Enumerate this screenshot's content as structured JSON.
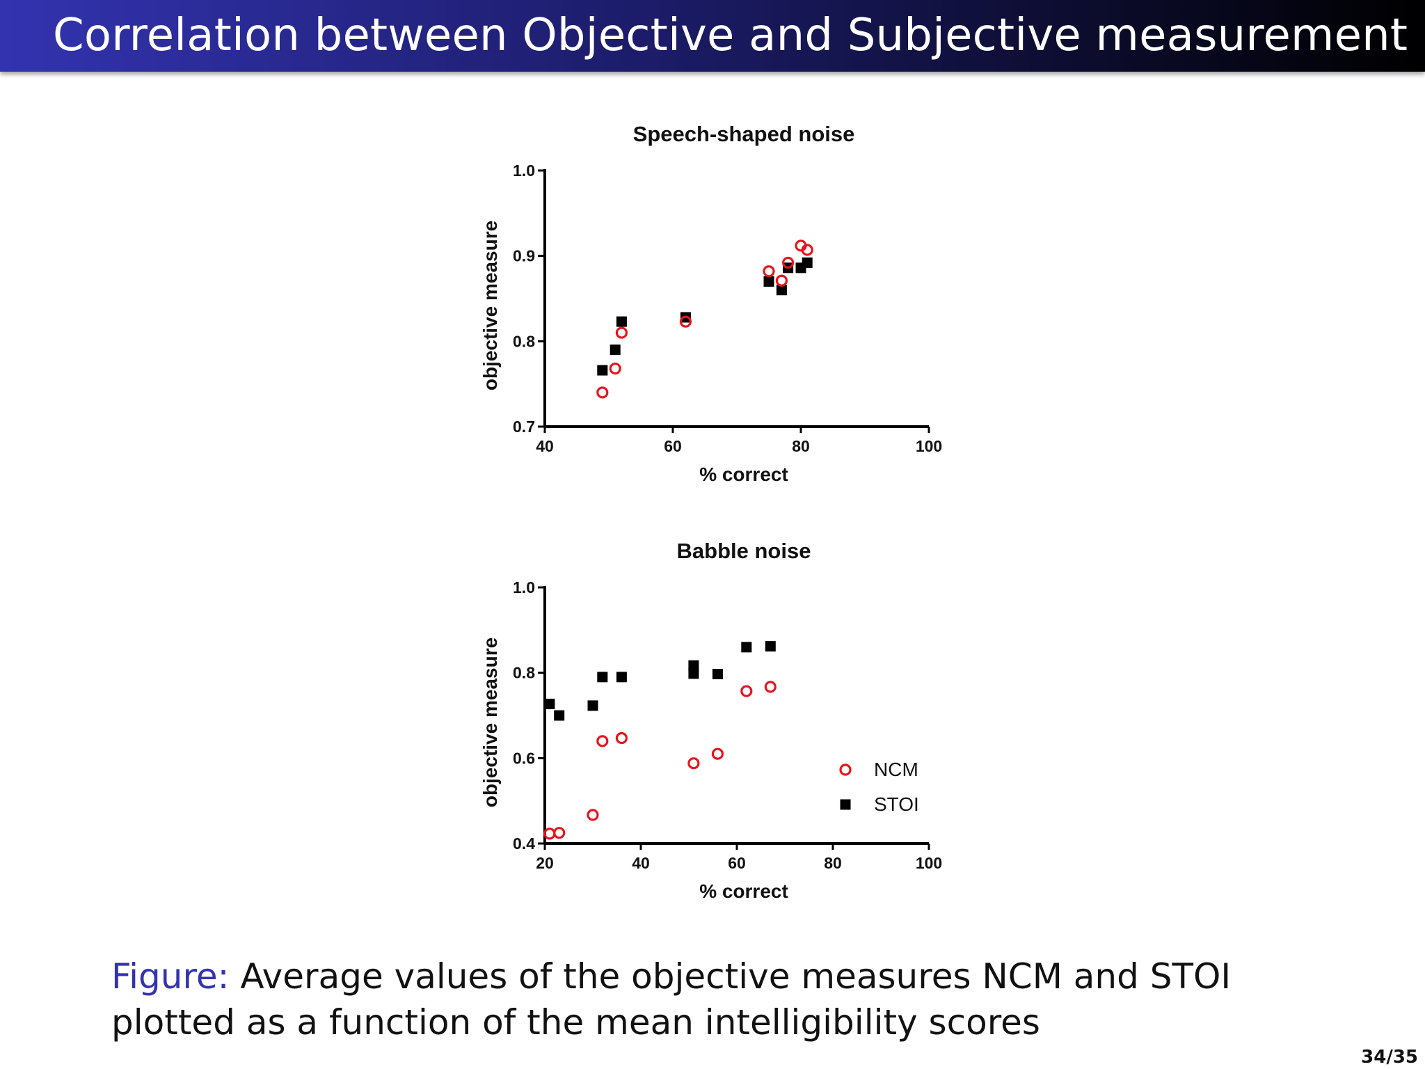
{
  "slide": {
    "title": "Correlation between Objective and Subjective measurement",
    "caption_label": "Figure:",
    "caption_text": " Average values of the objective measures NCM and STOI plotted as a function of the mean intelligibility scores",
    "page": "34/35"
  },
  "colors": {
    "ncm": "#e8141e",
    "stoi": "#000000",
    "title_bar_start": "#3333b0",
    "title_bar_end": "#000000"
  },
  "chart_data": [
    {
      "type": "scatter",
      "title": "Speech-shaped noise",
      "xlabel": "% correct",
      "ylabel": "objective measure",
      "xlim": [
        40,
        100
      ],
      "ylim": [
        0.7,
        1.0
      ],
      "xticks": [
        "40",
        "60",
        "80",
        "100"
      ],
      "yticks": [
        "0.7",
        "0.8",
        "0.9",
        "1.0"
      ],
      "grid": false,
      "series": [
        {
          "key": "ncm",
          "points": [
            [
              49,
              0.74
            ],
            [
              51,
              0.768
            ],
            [
              52,
              0.81
            ],
            [
              62,
              0.823
            ],
            [
              75,
              0.882
            ],
            [
              77,
              0.871
            ],
            [
              78,
              0.892
            ],
            [
              80,
              0.912
            ],
            [
              81,
              0.907
            ]
          ]
        },
        {
          "key": "stoi",
          "points": [
            [
              49,
              0.766
            ],
            [
              51,
              0.79
            ],
            [
              52,
              0.823
            ],
            [
              62,
              0.828
            ],
            [
              75,
              0.87
            ],
            [
              77,
              0.86
            ],
            [
              78,
              0.886
            ],
            [
              80,
              0.886
            ],
            [
              81,
              0.892
            ]
          ]
        }
      ]
    },
    {
      "type": "scatter",
      "title": "Babble noise",
      "xlabel": "% correct",
      "ylabel": "objective measure",
      "xlim": [
        20,
        100
      ],
      "ylim": [
        0.4,
        1.0
      ],
      "xticks": [
        "20",
        "40",
        "60",
        "80",
        "100"
      ],
      "yticks": [
        "0.4",
        "0.6",
        "0.8",
        "1.0"
      ],
      "grid": false,
      "legend": "bottom-right",
      "series": [
        {
          "key": "ncm",
          "name": "NCM",
          "points": [
            [
              21,
              0.423
            ],
            [
              23,
              0.425
            ],
            [
              30,
              0.467
            ],
            [
              32,
              0.64
            ],
            [
              36,
              0.647
            ],
            [
              51,
              0.588
            ],
            [
              56,
              0.61
            ],
            [
              62,
              0.757
            ],
            [
              67,
              0.767
            ]
          ]
        },
        {
          "key": "stoi",
          "name": "STOI",
          "points": [
            [
              21,
              0.727
            ],
            [
              23,
              0.7
            ],
            [
              30,
              0.723
            ],
            [
              32,
              0.79
            ],
            [
              36,
              0.79
            ],
            [
              51,
              0.798
            ],
            [
              51,
              0.817
            ],
            [
              56,
              0.797
            ],
            [
              62,
              0.86
            ],
            [
              67,
              0.862
            ]
          ]
        }
      ]
    }
  ]
}
